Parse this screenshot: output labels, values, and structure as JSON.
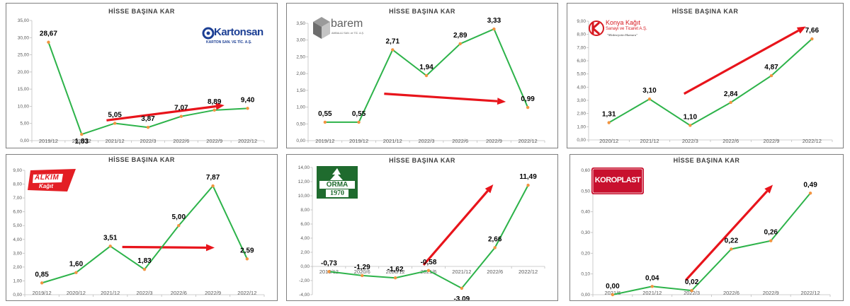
{
  "colors": {
    "line": "#2db34a",
    "marker": "#f29440",
    "arrow": "#e8141b",
    "border": "#7f7f7f"
  },
  "logos": [
    {
      "name": "kartonsan",
      "title": "Kartonsan",
      "subtitle": "KARTON SAN. VE TİC. A.Ş."
    },
    {
      "name": "barem",
      "title": "barem",
      "subtitle": "AMBALAJ SAN. ve TİC. A.Ş."
    },
    {
      "name": "konya-kagit",
      "title": "Konya Kağıt",
      "subtitle": "Sanayi ve Ticaret A.Ş.",
      "tagline": "\"Medeniyetin Hamuru\""
    },
    {
      "name": "alkim-kagit",
      "title": "ALKİM",
      "subtitle": "Kağıt"
    },
    {
      "name": "orma",
      "title": "ORMA",
      "subtitle": "1970"
    },
    {
      "name": "koroplast",
      "title": "KOROPLAST"
    }
  ],
  "chart_data": [
    {
      "type": "line",
      "title": "HİSSE BAŞINA KAR",
      "categories": [
        "2019/12",
        "2020/12",
        "2021/12",
        "2022/3",
        "2022/6",
        "2022/9",
        "2022/12"
      ],
      "values": [
        28.67,
        1.83,
        5.05,
        3.87,
        7.07,
        8.89,
        9.4
      ],
      "labels": [
        "28,67",
        "1,83",
        "5,05",
        "3,87",
        "7,07",
        "8,89",
        "9,40"
      ],
      "ylim": [
        0,
        35
      ],
      "yticks": [
        "0,00",
        "5,00",
        "10,00",
        "15,00",
        "20,00",
        "25,00",
        "30,00",
        "35,00"
      ],
      "ystep": 5,
      "trend_arrow": {
        "from": [
          1.75,
          5.9
        ],
        "to": [
          5.3,
          10.3
        ]
      }
    },
    {
      "type": "line",
      "title": "HİSSE BAŞINA KAR",
      "categories": [
        "2019/12",
        "2019/12",
        "2021/12",
        "2022/3",
        "2022/6",
        "2022/9",
        "2022/12"
      ],
      "values": [
        0.55,
        0.55,
        2.71,
        1.94,
        2.89,
        3.33,
        0.99
      ],
      "labels": [
        "0,55",
        "0,55",
        "2,71",
        "1,94",
        "2,89",
        "3,33",
        "0,99"
      ],
      "ylim": [
        0,
        3.5
      ],
      "yticks": [
        "0,00",
        "0,50",
        "1,00",
        "1,50",
        "2,00",
        "2,50",
        "3,00",
        "3,50"
      ],
      "ystep": 0.5,
      "trend_arrow": {
        "from": [
          1.75,
          1.4
        ],
        "to": [
          5.35,
          1.16
        ]
      }
    },
    {
      "type": "line",
      "title": "HİSSE BAŞINA KAR",
      "categories": [
        "2020/12",
        "2021/12",
        "2022/3",
        "2022/6",
        "2022/9",
        "2022/12"
      ],
      "values": [
        1.31,
        3.1,
        1.1,
        2.84,
        4.87,
        7.66
      ],
      "labels": [
        "1,31",
        "3,10",
        "1,10",
        "2,84",
        "4,87",
        "7,66"
      ],
      "ylim": [
        0,
        9
      ],
      "yticks": [
        "0,00",
        "1,00",
        "2,00",
        "3,00",
        "4,00",
        "5,00",
        "6,00",
        "7,00",
        "8,00",
        "9,00"
      ],
      "ystep": 1,
      "trend_arrow": {
        "from": [
          1.85,
          3.5
        ],
        "to": [
          4.85,
          8.6
        ]
      }
    },
    {
      "type": "line",
      "title": "HİSSE BAŞINA KAR",
      "categories": [
        "2019/12",
        "2020/12",
        "2021/12",
        "2022/3",
        "2022/6",
        "2022/9",
        "2022/12"
      ],
      "values": [
        0.85,
        1.6,
        3.51,
        1.83,
        5.0,
        7.87,
        2.59
      ],
      "labels": [
        "0,85",
        "1,60",
        "3,51",
        "1,83",
        "5,00",
        "7,87",
        "2,59"
      ],
      "ylim": [
        0,
        9
      ],
      "yticks": [
        "0,00",
        "1,00",
        "2,00",
        "3,00",
        "4,00",
        "5,00",
        "6,00",
        "7,00",
        "8,00",
        "9,00"
      ],
      "ystep": 1,
      "trend_arrow": {
        "from": [
          2.35,
          3.45
        ],
        "to": [
          5.05,
          3.4
        ]
      }
    },
    {
      "type": "line",
      "title": "HİSSE BAŞINA KAR",
      "categories": [
        "2019/12",
        "2020/6",
        "2020/12",
        "2021/6",
        "2021/12",
        "2022/6",
        "2022/12"
      ],
      "values": [
        -0.73,
        -1.29,
        -1.62,
        -0.58,
        -3.09,
        2.66,
        11.49
      ],
      "labels": [
        "-0,73",
        "-1,29",
        "-1,62",
        "-0,58",
        "-3,09",
        "2,66",
        "11,49"
      ],
      "ylim": [
        -4,
        14
      ],
      "yticks": [
        "-4,00",
        "-2,00",
        "0,00",
        "2,00",
        "4,00",
        "6,00",
        "8,00",
        "10,00",
        "12,00",
        "14,00"
      ],
      "ystep": 2,
      "trend_arrow": {
        "from": [
          2.85,
          0.2
        ],
        "to": [
          4.95,
          11.6
        ]
      }
    },
    {
      "type": "line",
      "title": "HİSSE BAŞINA KAR",
      "categories": [
        "2021/6",
        "2021/12",
        "2022/3",
        "2022/6",
        "2022/9",
        "2022/12"
      ],
      "values": [
        0.0,
        0.04,
        0.02,
        0.22,
        0.26,
        0.49
      ],
      "labels": [
        "0,00",
        "0,04",
        "0,02",
        "0,22",
        "0,26",
        "0,49"
      ],
      "ylim": [
        0,
        0.6
      ],
      "yticks": [
        "0,00",
        "0,10",
        "0,20",
        "0,30",
        "0,40",
        "0,50",
        "0,60"
      ],
      "ystep": 0.1,
      "trend_arrow": {
        "from": [
          1.85,
          0.07
        ],
        "to": [
          4.05,
          0.53
        ]
      }
    }
  ]
}
